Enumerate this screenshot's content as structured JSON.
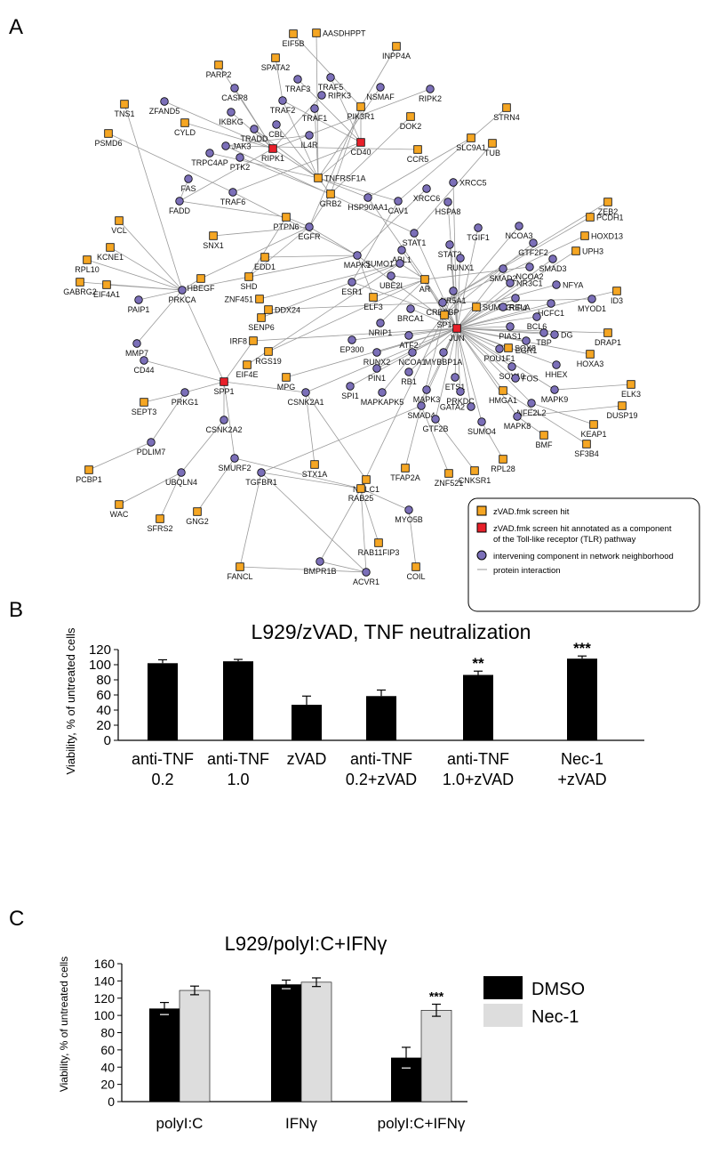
{
  "panel_labels": {
    "a": "A",
    "b": "B",
    "c": "C"
  },
  "colors": {
    "screen_hit": "#f5a623",
    "tlr_hit": "#e8202a",
    "intervening": "#7b6fb8",
    "edge": "#9a9a9a",
    "bar_black": "#000000",
    "bar_gray": "#dddddd"
  },
  "network": {
    "legend": {
      "screen_hit": "zVAD.fmk screen hit",
      "tlr_hit_line1": "zVAD.fmk screen hit annotated as a component",
      "tlr_hit_line2": "of the Toll-like receptor (TLR) pathway",
      "intervening": "intervening component in network neighborhood",
      "edge": "protein interaction"
    },
    "nodes": [
      {
        "id": "EIF5B",
        "type": "hit"
      },
      {
        "id": "AASDHPPT",
        "type": "hit"
      },
      {
        "id": "INPP4A",
        "type": "hit"
      },
      {
        "id": "PARP2",
        "type": "hit"
      },
      {
        "id": "SPATA2",
        "type": "hit"
      },
      {
        "id": "TRAF3",
        "type": "int"
      },
      {
        "id": "TRAF5",
        "type": "int"
      },
      {
        "id": "CASP8",
        "type": "int"
      },
      {
        "id": "NSMAF",
        "type": "int"
      },
      {
        "id": "RIPK2",
        "type": "int"
      },
      {
        "id": "TNS1",
        "type": "hit"
      },
      {
        "id": "ZFAND5",
        "type": "int"
      },
      {
        "id": "TRAF2",
        "type": "int"
      },
      {
        "id": "RIPK3",
        "type": "int"
      },
      {
        "id": "TRAF1",
        "type": "int"
      },
      {
        "id": "PIK3R1",
        "type": "hit"
      },
      {
        "id": "DOK2",
        "type": "hit"
      },
      {
        "id": "STRN4",
        "type": "hit"
      },
      {
        "id": "CYLD",
        "type": "hit"
      },
      {
        "id": "IKBKG",
        "type": "int"
      },
      {
        "id": "CBL",
        "type": "int"
      },
      {
        "id": "IL4R",
        "type": "int"
      },
      {
        "id": "CD40",
        "type": "tlr"
      },
      {
        "id": "RIPK1",
        "type": "tlr"
      },
      {
        "id": "TRADD",
        "type": "int"
      },
      {
        "id": "SLC9A1",
        "type": "hit"
      },
      {
        "id": "TUB",
        "type": "hit"
      },
      {
        "id": "PSMD6",
        "type": "hit"
      },
      {
        "id": "TRPC4AP",
        "type": "int"
      },
      {
        "id": "JAK3",
        "type": "int"
      },
      {
        "id": "CCR5",
        "type": "hit"
      },
      {
        "id": "PTK2",
        "type": "int"
      },
      {
        "id": "TNFRSF1A",
        "type": "hit"
      },
      {
        "id": "FAS",
        "type": "int"
      },
      {
        "id": "XRCC6",
        "type": "int"
      },
      {
        "id": "XRCC5",
        "type": "int"
      },
      {
        "id": "ZEB2",
        "type": "hit"
      },
      {
        "id": "TRAF6",
        "type": "int"
      },
      {
        "id": "GRB2",
        "type": "hit"
      },
      {
        "id": "HSP90AA1",
        "type": "int"
      },
      {
        "id": "CAV1",
        "type": "int"
      },
      {
        "id": "HSPA8",
        "type": "int"
      },
      {
        "id": "FADD",
        "type": "int"
      },
      {
        "id": "PCDH1",
        "type": "hit"
      },
      {
        "id": "VCL",
        "type": "hit"
      },
      {
        "id": "SNX1",
        "type": "hit"
      },
      {
        "id": "PTPN6",
        "type": "hit"
      },
      {
        "id": "EGFR",
        "type": "int"
      },
      {
        "id": "STAT1",
        "type": "int"
      },
      {
        "id": "TGIF1",
        "type": "int"
      },
      {
        "id": "NCOA3",
        "type": "int"
      },
      {
        "id": "HOXD13",
        "type": "hit"
      },
      {
        "id": "STAT3",
        "type": "int"
      },
      {
        "id": "GTF2F2",
        "type": "int"
      },
      {
        "id": "UPH3",
        "type": "hit"
      },
      {
        "id": "ABL1",
        "type": "int"
      },
      {
        "id": "KCNE1",
        "type": "hit"
      },
      {
        "id": "MAPK1",
        "type": "int"
      },
      {
        "id": "SUMO1",
        "type": "int"
      },
      {
        "id": "RUNX1",
        "type": "int"
      },
      {
        "id": "SMAD3",
        "type": "int"
      },
      {
        "id": "RPL10",
        "type": "hit"
      },
      {
        "id": "HBEGF",
        "type": "hit"
      },
      {
        "id": "EDD1",
        "type": "hit"
      },
      {
        "id": "UBE2I",
        "type": "int"
      },
      {
        "id": "AR",
        "type": "hit"
      },
      {
        "id": "SMAD2",
        "type": "int"
      },
      {
        "id": "NCOA2",
        "type": "int"
      },
      {
        "id": "NR3C1",
        "type": "int"
      },
      {
        "id": "NFYA",
        "type": "int"
      },
      {
        "id": "GABRG2",
        "type": "hit"
      },
      {
        "id": "EIF4A1",
        "type": "hit"
      },
      {
        "id": "PRKCA",
        "type": "int"
      },
      {
        "id": "SHD",
        "type": "hit"
      },
      {
        "id": "ESR1",
        "type": "int"
      },
      {
        "id": "NR5A1",
        "type": "int"
      },
      {
        "id": "TRIP4",
        "type": "int"
      },
      {
        "id": "ID3",
        "type": "hit"
      },
      {
        "id": "PAIP1",
        "type": "int"
      },
      {
        "id": "ZNF451",
        "type": "hit"
      },
      {
        "id": "ELF3",
        "type": "hit"
      },
      {
        "id": "CREBBP",
        "type": "int"
      },
      {
        "id": "SUMO3",
        "type": "hit"
      },
      {
        "id": "HCFC1",
        "type": "int"
      },
      {
        "id": "MYOD1",
        "type": "int"
      },
      {
        "id": "DDX24",
        "type": "hit"
      },
      {
        "id": "BRCA1",
        "type": "int"
      },
      {
        "id": "RELA",
        "type": "int"
      },
      {
        "id": "BCL6",
        "type": "int"
      },
      {
        "id": "NRIP1",
        "type": "int"
      },
      {
        "id": "SP1",
        "type": "hit"
      },
      {
        "id": "JUN",
        "type": "tlr"
      },
      {
        "id": "SENP6",
        "type": "hit"
      },
      {
        "id": "PIAS1",
        "type": "int"
      },
      {
        "id": "DRAP1",
        "type": "hit"
      },
      {
        "id": "MMP7",
        "type": "int"
      },
      {
        "id": "EP300",
        "type": "int"
      },
      {
        "id": "ATF2",
        "type": "int"
      },
      {
        "id": "EGR1",
        "type": "int"
      },
      {
        "id": "TBP",
        "type": "int"
      },
      {
        "id": "DG",
        "type": "int"
      },
      {
        "id": "IRF8",
        "type": "hit"
      },
      {
        "id": "RGS19",
        "type": "hit"
      },
      {
        "id": "RUNX2",
        "type": "int"
      },
      {
        "id": "NCOA1",
        "type": "int"
      },
      {
        "id": "MYBBP1A",
        "type": "int"
      },
      {
        "id": "POU1F1",
        "type": "int"
      },
      {
        "id": "HOXA3",
        "type": "hit"
      },
      {
        "id": "CD44",
        "type": "int"
      },
      {
        "id": "EIF4E",
        "type": "hit"
      },
      {
        "id": "PIN1",
        "type": "int"
      },
      {
        "id": "SOX8",
        "type": "hit"
      },
      {
        "id": "SOX10",
        "type": "int"
      },
      {
        "id": "HHEX",
        "type": "int"
      },
      {
        "id": "SPP1",
        "type": "tlr"
      },
      {
        "id": "MPG",
        "type": "hit"
      },
      {
        "id": "SPI1",
        "type": "int"
      },
      {
        "id": "RB1",
        "type": "int"
      },
      {
        "id": "MAPK3",
        "type": "int"
      },
      {
        "id": "ETS1",
        "type": "int"
      },
      {
        "id": "FOS",
        "type": "int"
      },
      {
        "id": "MAPK9",
        "type": "int"
      },
      {
        "id": "ELK3",
        "type": "hit"
      },
      {
        "id": "SEPT3",
        "type": "hit"
      },
      {
        "id": "PRKG1",
        "type": "int"
      },
      {
        "id": "CSNK2A1",
        "type": "int"
      },
      {
        "id": "MAPKAPK5",
        "type": "int"
      },
      {
        "id": "PRKDC",
        "type": "int"
      },
      {
        "id": "HMGA1",
        "type": "hit"
      },
      {
        "id": "NFE2L2",
        "type": "int"
      },
      {
        "id": "DUSP19",
        "type": "hit"
      },
      {
        "id": "GATA2",
        "type": "int"
      },
      {
        "id": "MAPK8",
        "type": "int"
      },
      {
        "id": "SMAD4",
        "type": "int"
      },
      {
        "id": "KEAP1",
        "type": "hit"
      },
      {
        "id": "CSNK2A2",
        "type": "int"
      },
      {
        "id": "SUMO4",
        "type": "int"
      },
      {
        "id": "GTF2B",
        "type": "int"
      },
      {
        "id": "BMF",
        "type": "hit"
      },
      {
        "id": "PDLIM7",
        "type": "int"
      },
      {
        "id": "SF3B4",
        "type": "hit"
      },
      {
        "id": "SMURF2",
        "type": "int"
      },
      {
        "id": "TGFBR1",
        "type": "int"
      },
      {
        "id": "STX1A",
        "type": "hit"
      },
      {
        "id": "NOLC1",
        "type": "hit"
      },
      {
        "id": "TFAP2A",
        "type": "hit"
      },
      {
        "id": "RPL28",
        "type": "hit"
      },
      {
        "id": "PCBP1",
        "type": "hit"
      },
      {
        "id": "UBQLN4",
        "type": "int"
      },
      {
        "id": "CNKSR1",
        "type": "hit"
      },
      {
        "id": "ZNF521",
        "type": "hit"
      },
      {
        "id": "RAB25",
        "type": "hit"
      },
      {
        "id": "WAC",
        "type": "hit"
      },
      {
        "id": "SFRS2",
        "type": "hit"
      },
      {
        "id": "GNG2",
        "type": "hit"
      },
      {
        "id": "MYO5B",
        "type": "int"
      },
      {
        "id": "RAB11FIP3",
        "type": "hit"
      },
      {
        "id": "BMPR1B",
        "type": "int"
      },
      {
        "id": "FANCL",
        "type": "hit"
      },
      {
        "id": "ACVR1",
        "type": "int"
      },
      {
        "id": "COIL",
        "type": "hit"
      }
    ]
  },
  "chart_data": [
    {
      "type": "bar",
      "title": "L929/zVAD, TNF neutralization",
      "ylabel": "Viability, % of untreated cells",
      "xlabel": "",
      "ylim": [
        0,
        120
      ],
      "yticks": [
        0,
        20,
        40,
        60,
        80,
        100,
        120
      ],
      "categories": [
        [
          "anti-TNF",
          "0.2"
        ],
        [
          "anti-TNF",
          "1.0"
        ],
        [
          "zVAD"
        ],
        [
          "anti-TNF",
          "0.2+zVAD"
        ],
        [
          "anti-TNF",
          "1.0+zVAD"
        ],
        [
          "Nec-1",
          "+zVAD"
        ]
      ],
      "values": [
        102,
        104.5,
        47,
        58.5,
        86.5,
        108
      ],
      "errors": [
        4.5,
        2.5,
        11.5,
        8,
        5,
        3.5
      ],
      "annotations": [
        "",
        "",
        "",
        "",
        "**",
        "***"
      ],
      "grid": false
    },
    {
      "type": "bar",
      "title": "L929/polyI:C+IFNγ",
      "ylabel": "Viability, % of untreated cells",
      "xlabel": "",
      "ylim": [
        0,
        160
      ],
      "yticks": [
        0,
        20,
        40,
        60,
        80,
        100,
        120,
        140,
        160
      ],
      "categories": [
        "polyI:C",
        "IFNγ",
        "polyI:C+IFNγ"
      ],
      "series": [
        {
          "name": "DMSO",
          "values": [
            108,
            136,
            51
          ],
          "errors": [
            7,
            5,
            12
          ]
        },
        {
          "name": "Nec-1",
          "values": [
            129,
            138.5,
            106
          ],
          "errors": [
            5,
            5,
            7
          ]
        }
      ],
      "annotations": [
        [
          "",
          ""
        ],
        [
          "",
          ""
        ],
        [
          "",
          "***"
        ]
      ],
      "legend": "right",
      "grid": false
    }
  ]
}
